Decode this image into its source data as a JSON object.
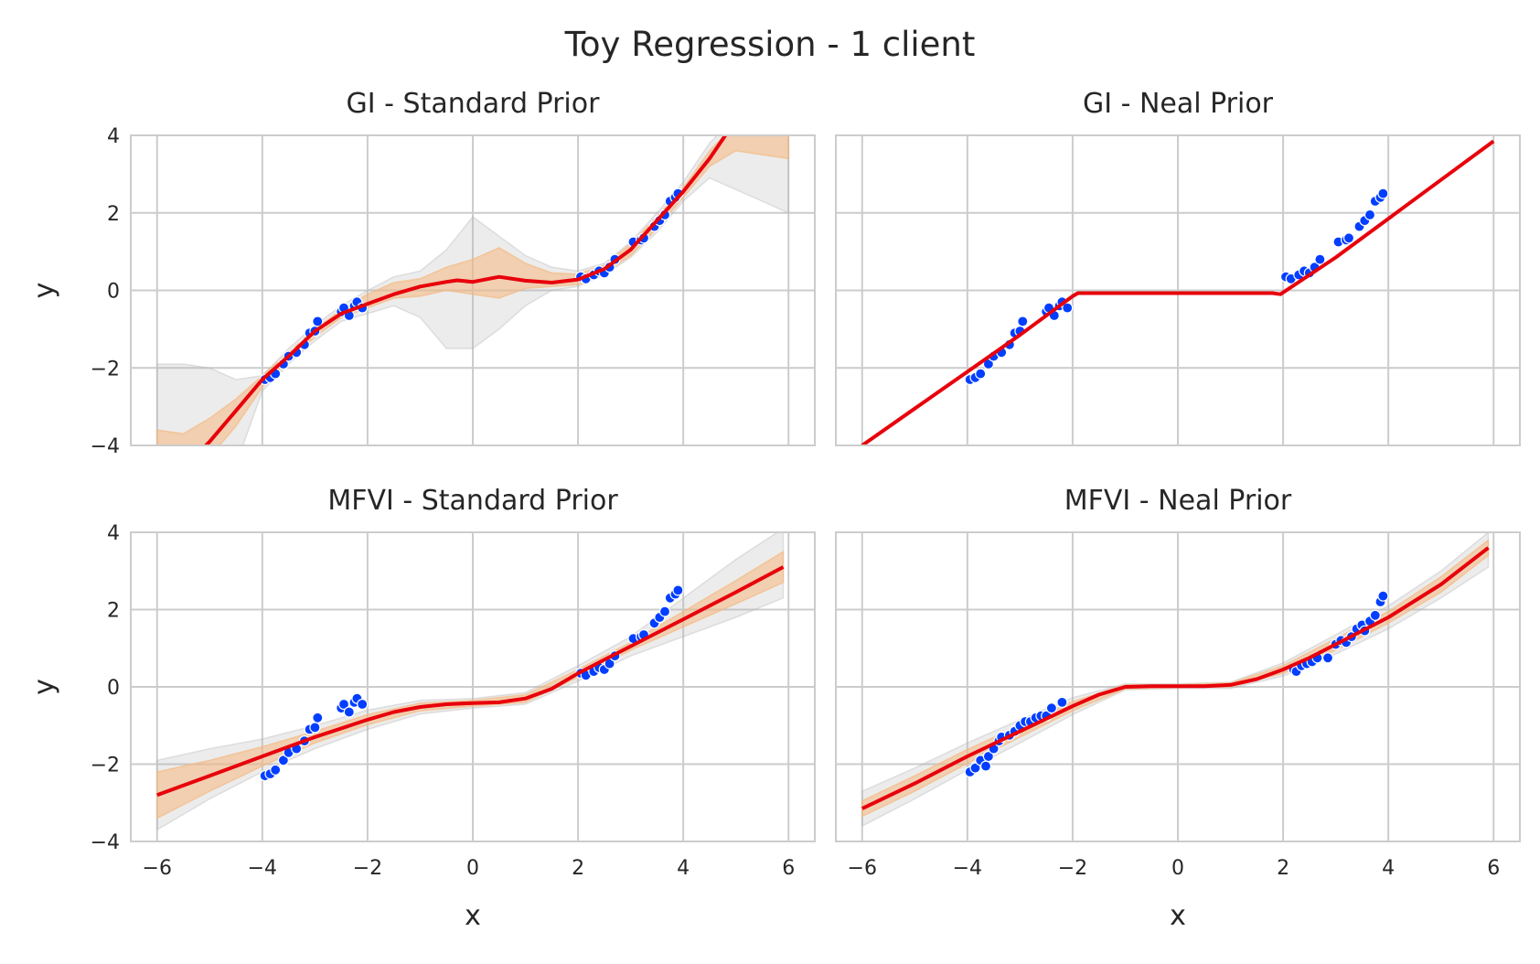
{
  "figure": {
    "title": "Toy Regression - 1 client",
    "colors": {
      "mean_line": "#e8000b",
      "band_inner": "#f5b880",
      "band_outer": "#b3b3b3",
      "points": "#023eff",
      "grid": "#cccccc",
      "frame": "#cccccc"
    }
  },
  "chart_data": [
    {
      "id": "gi-standard",
      "type": "line",
      "title": "GI - Standard Prior",
      "xlabel": "",
      "ylabel": "y",
      "xlim": [
        -6.5,
        6.5
      ],
      "ylim": [
        -4,
        4
      ],
      "xticks": [
        -6,
        -4,
        -2,
        0,
        2,
        4,
        6
      ],
      "yticks": [
        -4,
        -2,
        0,
        2,
        4
      ],
      "xtick_labels": [],
      "ytick_labels": [
        "−4",
        "−2",
        "0",
        "2",
        "4"
      ],
      "grid": true,
      "mean": {
        "x": [
          -6,
          -5.5,
          -5,
          -4.5,
          -4,
          -3.5,
          -3,
          -2.5,
          -2,
          -1.5,
          -1,
          -0.5,
          -0.3,
          0,
          0.5,
          1,
          1.5,
          2,
          2.5,
          3,
          3.5,
          4,
          4.5,
          5
        ],
        "y": [
          -5.2,
          -4.6,
          -3.9,
          -3.1,
          -2.3,
          -1.7,
          -1.05,
          -0.6,
          -0.35,
          -0.1,
          0.1,
          0.22,
          0.26,
          0.22,
          0.35,
          0.25,
          0.2,
          0.28,
          0.55,
          1.05,
          1.8,
          2.55,
          3.4,
          4.4
        ]
      },
      "band_inner": {
        "x": [
          -6,
          -5.5,
          -5,
          -4.5,
          -4,
          -3.5,
          -3,
          -2.5,
          -2,
          -1.5,
          -1,
          -0.5,
          0,
          0.5,
          1,
          1.5,
          2,
          2.5,
          3,
          3.5,
          4,
          4.5,
          5,
          5.5,
          6
        ],
        "upper": [
          -3.6,
          -3.7,
          -3.3,
          -2.8,
          -2.2,
          -1.6,
          -1.0,
          -0.5,
          -0.1,
          0.2,
          0.3,
          0.6,
          0.8,
          1.1,
          0.7,
          0.45,
          0.42,
          0.65,
          1.2,
          1.9,
          2.65,
          3.6,
          4.3,
          4.4,
          4.4
        ],
        "lower": [
          -4.5,
          -4.5,
          -4.3,
          -3.5,
          -2.5,
          -1.8,
          -1.2,
          -0.7,
          -0.45,
          -0.2,
          -0.15,
          0.0,
          -0.1,
          -0.2,
          0.05,
          0.1,
          0.15,
          0.45,
          0.9,
          1.6,
          2.4,
          3.2,
          3.6,
          3.5,
          3.4
        ]
      },
      "band_outer": {
        "x": [
          -6,
          -5.5,
          -5,
          -4.5,
          -4,
          -3.5,
          -3,
          -2.5,
          -2,
          -1.5,
          -1,
          -0.5,
          0,
          0.5,
          1,
          1.5,
          2,
          2.5,
          3,
          3.5,
          4,
          4.5,
          5,
          5.5,
          6
        ],
        "upper": [
          -1.9,
          -1.9,
          -2.0,
          -2.3,
          -2.2,
          -1.5,
          -0.9,
          -0.4,
          0.0,
          0.35,
          0.5,
          1.05,
          1.9,
          1.4,
          0.9,
          0.6,
          0.5,
          0.7,
          1.25,
          2.0,
          2.8,
          3.8,
          4.5,
          4.7,
          4.6
        ],
        "lower": [
          -4.5,
          -4.5,
          -4.5,
          -4.5,
          -2.6,
          -1.9,
          -1.3,
          -0.8,
          -0.6,
          -0.4,
          -0.7,
          -1.5,
          -1.5,
          -1.0,
          -0.4,
          0.0,
          0.1,
          0.4,
          0.85,
          1.5,
          2.3,
          2.9,
          2.6,
          2.3,
          2.0
        ]
      },
      "points": {
        "x": [
          -3.95,
          -3.85,
          -3.75,
          -3.6,
          -3.5,
          -3.35,
          -3.2,
          -3.1,
          -3.0,
          -2.95,
          -2.5,
          -2.45,
          -2.35,
          -2.25,
          -2.2,
          -2.1,
          2.05,
          2.15,
          2.3,
          2.4,
          2.5,
          2.6,
          2.7,
          3.05,
          3.2,
          3.25,
          3.45,
          3.55,
          3.65,
          3.75,
          3.85,
          3.9
        ],
        "y": [
          -2.3,
          -2.25,
          -2.15,
          -1.9,
          -1.7,
          -1.6,
          -1.4,
          -1.1,
          -1.05,
          -0.8,
          -0.55,
          -0.45,
          -0.65,
          -0.4,
          -0.3,
          -0.45,
          0.35,
          0.3,
          0.4,
          0.5,
          0.45,
          0.6,
          0.8,
          1.25,
          1.3,
          1.35,
          1.65,
          1.8,
          1.95,
          2.3,
          2.4,
          2.5
        ]
      }
    },
    {
      "id": "gi-neal",
      "type": "line",
      "title": "GI - Neal Prior",
      "xlabel": "",
      "ylabel": "",
      "xlim": [
        -6.5,
        6.5
      ],
      "ylim": [
        -4,
        4
      ],
      "xticks": [
        -6,
        -4,
        -2,
        0,
        2,
        4,
        6
      ],
      "yticks": [
        -4,
        -2,
        0,
        2,
        4
      ],
      "xtick_labels": [],
      "ytick_labels": [],
      "grid": true,
      "mean": {
        "x": [
          -6,
          -5,
          -4,
          -3,
          -2,
          -1.9,
          -1,
          0,
          1,
          1.8,
          1.95,
          3,
          4,
          5,
          6
        ],
        "y": [
          -4.0,
          -3.05,
          -2.1,
          -1.15,
          -0.15,
          -0.07,
          -0.07,
          -0.07,
          -0.07,
          -0.07,
          -0.1,
          0.85,
          1.85,
          2.85,
          3.85
        ]
      },
      "band_inner": null,
      "band_outer": null,
      "points": {
        "x": [
          -3.95,
          -3.85,
          -3.75,
          -3.6,
          -3.5,
          -3.35,
          -3.2,
          -3.1,
          -3.0,
          -2.95,
          -2.5,
          -2.45,
          -2.35,
          -2.25,
          -2.2,
          -2.1,
          2.05,
          2.15,
          2.3,
          2.4,
          2.5,
          2.6,
          2.7,
          3.05,
          3.2,
          3.25,
          3.45,
          3.55,
          3.65,
          3.75,
          3.85,
          3.9
        ],
        "y": [
          -2.3,
          -2.25,
          -2.15,
          -1.9,
          -1.7,
          -1.6,
          -1.4,
          -1.1,
          -1.05,
          -0.8,
          -0.55,
          -0.45,
          -0.65,
          -0.4,
          -0.3,
          -0.45,
          0.35,
          0.3,
          0.4,
          0.5,
          0.45,
          0.6,
          0.8,
          1.25,
          1.3,
          1.35,
          1.65,
          1.8,
          1.95,
          2.3,
          2.4,
          2.5
        ]
      }
    },
    {
      "id": "mfvi-standard",
      "type": "line",
      "title": "MFVI - Standard Prior",
      "xlabel": "x",
      "ylabel": "y",
      "xlim": [
        -6.5,
        6.5
      ],
      "ylim": [
        -4,
        4
      ],
      "xticks": [
        -6,
        -4,
        -2,
        0,
        2,
        4,
        6
      ],
      "yticks": [
        -4,
        -2,
        0,
        2,
        4
      ],
      "xtick_labels": [
        "−6",
        "−4",
        "−2",
        "0",
        "2",
        "4",
        "6"
      ],
      "ytick_labels": [
        "−4",
        "−2",
        "0",
        "2",
        "4"
      ],
      "grid": true,
      "mean": {
        "x": [
          -6,
          -5,
          -4,
          -3,
          -2,
          -1.5,
          -1,
          -0.5,
          0,
          0.5,
          1,
          1.5,
          2,
          2.5,
          3,
          4,
          5,
          5.9
        ],
        "y": [
          -2.8,
          -2.3,
          -1.8,
          -1.3,
          -0.85,
          -0.65,
          -0.52,
          -0.45,
          -0.42,
          -0.4,
          -0.3,
          -0.05,
          0.35,
          0.7,
          1.05,
          1.75,
          2.45,
          3.1
        ]
      },
      "band_inner": {
        "x": [
          -6,
          -5,
          -4,
          -3,
          -2,
          -1,
          0,
          1,
          2,
          3,
          4,
          5,
          5.9
        ],
        "upper": [
          -2.2,
          -1.9,
          -1.55,
          -1.15,
          -0.72,
          -0.42,
          -0.35,
          -0.2,
          0.45,
          1.15,
          1.95,
          2.75,
          3.5
        ],
        "lower": [
          -3.4,
          -2.7,
          -2.05,
          -1.45,
          -0.98,
          -0.62,
          -0.5,
          -0.4,
          0.25,
          0.95,
          1.55,
          2.15,
          2.7
        ]
      },
      "band_outer": {
        "x": [
          -6,
          -5,
          -4,
          -3,
          -2,
          -1,
          0,
          1,
          2,
          3,
          4,
          5,
          5.9
        ],
        "upper": [
          -1.9,
          -1.6,
          -1.35,
          -1.0,
          -0.6,
          -0.35,
          -0.3,
          -0.15,
          0.55,
          1.3,
          2.3,
          3.3,
          4.1
        ],
        "lower": [
          -3.7,
          -2.9,
          -2.2,
          -1.6,
          -1.1,
          -0.7,
          -0.55,
          -0.45,
          0.15,
          0.8,
          1.3,
          1.8,
          2.3
        ]
      },
      "points": {
        "x": [
          -3.95,
          -3.85,
          -3.75,
          -3.6,
          -3.5,
          -3.35,
          -3.2,
          -3.1,
          -3.0,
          -2.95,
          -2.5,
          -2.45,
          -2.35,
          -2.25,
          -2.2,
          -2.1,
          2.05,
          2.15,
          2.3,
          2.4,
          2.5,
          2.6,
          2.7,
          3.05,
          3.2,
          3.25,
          3.45,
          3.55,
          3.65,
          3.75,
          3.85,
          3.9
        ],
        "y": [
          -2.3,
          -2.25,
          -2.15,
          -1.9,
          -1.7,
          -1.6,
          -1.4,
          -1.1,
          -1.05,
          -0.8,
          -0.55,
          -0.45,
          -0.65,
          -0.4,
          -0.3,
          -0.45,
          0.35,
          0.3,
          0.4,
          0.5,
          0.45,
          0.6,
          0.8,
          1.25,
          1.3,
          1.35,
          1.65,
          1.8,
          1.95,
          2.3,
          2.4,
          2.5
        ]
      }
    },
    {
      "id": "mfvi-neal",
      "type": "line",
      "title": "MFVI - Neal Prior",
      "xlabel": "x",
      "ylabel": "",
      "xlim": [
        -6.5,
        6.5
      ],
      "ylim": [
        -4,
        4
      ],
      "xticks": [
        -6,
        -4,
        -2,
        0,
        2,
        4,
        6
      ],
      "yticks": [
        -4,
        -2,
        0,
        2,
        4
      ],
      "xtick_labels": [
        "−6",
        "−4",
        "−2",
        "0",
        "2",
        "4",
        "6"
      ],
      "ytick_labels": [],
      "grid": true,
      "mean": {
        "x": [
          -6,
          -5,
          -4,
          -3,
          -2,
          -1.5,
          -1,
          -0.5,
          0,
          0.5,
          1,
          1.5,
          2,
          2.5,
          3,
          4,
          5,
          5.9
        ],
        "y": [
          -3.15,
          -2.5,
          -1.8,
          -1.15,
          -0.5,
          -0.2,
          0.0,
          0.02,
          0.02,
          0.02,
          0.05,
          0.2,
          0.45,
          0.75,
          1.1,
          1.8,
          2.65,
          3.6
        ]
      },
      "band_inner": {
        "x": [
          -6,
          -5,
          -4,
          -3,
          -2,
          -1,
          0,
          1,
          2,
          3,
          4,
          5,
          5.9
        ],
        "upper": [
          -2.95,
          -2.3,
          -1.62,
          -1.0,
          -0.38,
          0.05,
          0.06,
          0.1,
          0.55,
          1.25,
          1.95,
          2.85,
          3.8
        ],
        "lower": [
          -3.35,
          -2.7,
          -1.98,
          -1.3,
          -0.62,
          -0.05,
          -0.02,
          0.0,
          0.35,
          0.95,
          1.65,
          2.45,
          3.4
        ]
      },
      "band_outer": {
        "x": [
          -6,
          -5,
          -4,
          -3,
          -2,
          -1,
          0,
          1,
          2,
          3,
          4,
          5,
          5.9
        ],
        "upper": [
          -2.7,
          -2.1,
          -1.45,
          -0.85,
          -0.28,
          0.08,
          0.08,
          0.12,
          0.62,
          1.35,
          2.1,
          3.0,
          4.0
        ],
        "lower": [
          -3.6,
          -2.9,
          -2.15,
          -1.45,
          -0.72,
          -0.08,
          -0.04,
          -0.04,
          0.28,
          0.85,
          1.5,
          2.3,
          3.1
        ]
      },
      "points": {
        "x": [
          -3.95,
          -3.85,
          -3.75,
          -3.65,
          -3.6,
          -3.5,
          -3.4,
          -3.35,
          -3.2,
          -3.1,
          -3.0,
          -2.9,
          -2.8,
          -2.7,
          -2.6,
          -2.5,
          -2.4,
          -2.2,
          2.2,
          2.25,
          2.35,
          2.45,
          2.55,
          2.65,
          2.85,
          3.0,
          3.1,
          3.2,
          3.3,
          3.4,
          3.5,
          3.55,
          3.65,
          3.75,
          3.85,
          3.9
        ],
        "y": [
          -2.2,
          -2.1,
          -1.9,
          -2.05,
          -1.8,
          -1.6,
          -1.4,
          -1.3,
          -1.25,
          -1.15,
          -1.0,
          -0.9,
          -0.9,
          -0.8,
          -0.75,
          -0.75,
          -0.55,
          -0.4,
          0.45,
          0.4,
          0.55,
          0.6,
          0.65,
          0.75,
          0.75,
          1.1,
          1.2,
          1.15,
          1.3,
          1.5,
          1.6,
          1.45,
          1.7,
          1.85,
          2.2,
          2.35
        ]
      }
    }
  ]
}
